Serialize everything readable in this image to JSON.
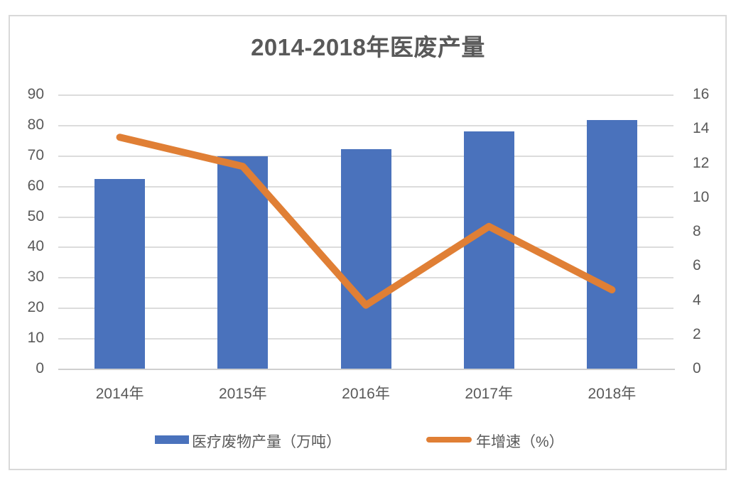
{
  "title": "2014-2018年医废产量",
  "colors": {
    "bar": "#4a72bc",
    "line": "#e07f35",
    "gridline": "#dcdcdc",
    "axis_line": "#cfcfcf",
    "frame_border": "#d9d9d9",
    "text": "#595959"
  },
  "legend": {
    "items": [
      {
        "label": "医疗废物产量（万吨）",
        "swatch": "bar-swatch",
        "color": "#4a72bc"
      },
      {
        "label": "年增速（%）",
        "swatch": "line-swatch",
        "color": "#e07f35"
      }
    ]
  },
  "chart_data": {
    "type": "combo-bar-line",
    "title": "2014-2018年医废产量",
    "categories": [
      "2014年",
      "2015年",
      "2016年",
      "2017年",
      "2018年"
    ],
    "series": [
      {
        "name": "医疗废物产量（万吨）",
        "type": "bar",
        "axis": "left",
        "color": "#4a72bc",
        "values": [
          62.2,
          69.7,
          72.1,
          77.8,
          81.7
        ]
      },
      {
        "name": "年增速（%）",
        "type": "line",
        "axis": "right",
        "color": "#e07f35",
        "values": [
          13.5,
          11.8,
          3.7,
          8.3,
          4.6
        ]
      }
    ],
    "left_axis": {
      "min": 0,
      "max": 90,
      "step": 10,
      "ticks": [
        0,
        10,
        20,
        30,
        40,
        50,
        60,
        70,
        80,
        90
      ]
    },
    "right_axis": {
      "min": 0,
      "max": 16,
      "step": 2,
      "ticks": [
        0,
        2,
        4,
        6,
        8,
        10,
        12,
        14,
        16
      ]
    },
    "grid": true,
    "legend_position": "bottom",
    "xlabel": "",
    "ylabel_left": "",
    "ylabel_right": ""
  }
}
